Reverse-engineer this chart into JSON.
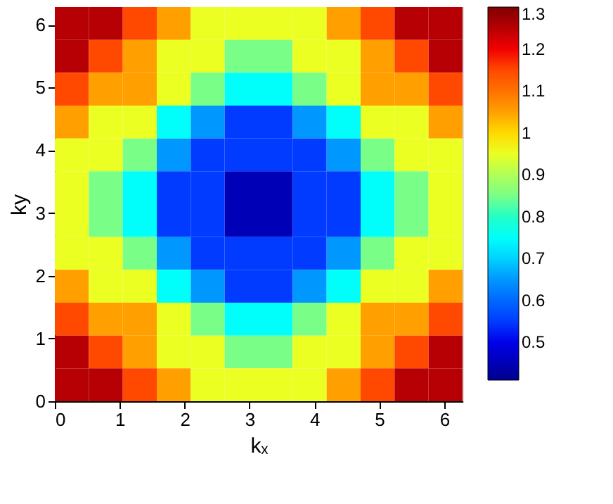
{
  "chart_data": {
    "type": "heatmap",
    "xlabel": "kₓ",
    "ylabel": "ky",
    "xlim": [
      0,
      6.283
    ],
    "ylim": [
      0,
      6.283
    ],
    "xticks": [
      0,
      1,
      2,
      3,
      4,
      5,
      6
    ],
    "yticks": [
      0,
      1,
      2,
      3,
      4,
      5,
      6
    ],
    "clim": [
      0.41,
      1.3
    ],
    "cticks": [
      0.5,
      0.6,
      0.7,
      0.8,
      0.9,
      1,
      1.1,
      1.2,
      1.3
    ],
    "cells": [
      [
        1.25,
        1.25,
        1.15,
        1.05,
        0.95,
        0.95,
        0.95,
        0.95,
        1.05,
        1.15,
        1.25,
        1.25
      ],
      [
        1.25,
        1.15,
        1.05,
        0.95,
        0.95,
        0.85,
        0.85,
        0.95,
        0.95,
        1.05,
        1.15,
        1.25
      ],
      [
        1.15,
        1.05,
        1.05,
        0.95,
        0.85,
        0.75,
        0.75,
        0.85,
        0.95,
        1.05,
        1.05,
        1.15
      ],
      [
        1.05,
        0.95,
        0.95,
        0.75,
        0.65,
        0.55,
        0.55,
        0.65,
        0.75,
        0.95,
        0.95,
        1.05
      ],
      [
        0.95,
        0.95,
        0.85,
        0.65,
        0.55,
        0.55,
        0.55,
        0.55,
        0.65,
        0.85,
        0.95,
        0.95
      ],
      [
        0.95,
        0.85,
        0.75,
        0.55,
        0.55,
        0.45,
        0.45,
        0.55,
        0.55,
        0.75,
        0.85,
        0.95
      ],
      [
        0.95,
        0.85,
        0.75,
        0.55,
        0.55,
        0.45,
        0.45,
        0.55,
        0.55,
        0.75,
        0.85,
        0.95
      ],
      [
        0.95,
        0.95,
        0.85,
        0.65,
        0.55,
        0.55,
        0.55,
        0.55,
        0.65,
        0.85,
        0.95,
        0.95
      ],
      [
        1.05,
        0.95,
        0.95,
        0.75,
        0.65,
        0.55,
        0.55,
        0.65,
        0.75,
        0.95,
        0.95,
        1.05
      ],
      [
        1.15,
        1.05,
        1.05,
        0.95,
        0.85,
        0.75,
        0.75,
        0.85,
        0.95,
        1.05,
        1.05,
        1.15
      ],
      [
        1.25,
        1.15,
        1.05,
        0.95,
        0.95,
        0.85,
        0.85,
        0.95,
        0.95,
        1.05,
        1.15,
        1.25
      ],
      [
        1.25,
        1.25,
        1.15,
        1.05,
        0.95,
        0.95,
        0.95,
        0.95,
        1.05,
        1.15,
        1.25,
        1.25
      ]
    ]
  }
}
